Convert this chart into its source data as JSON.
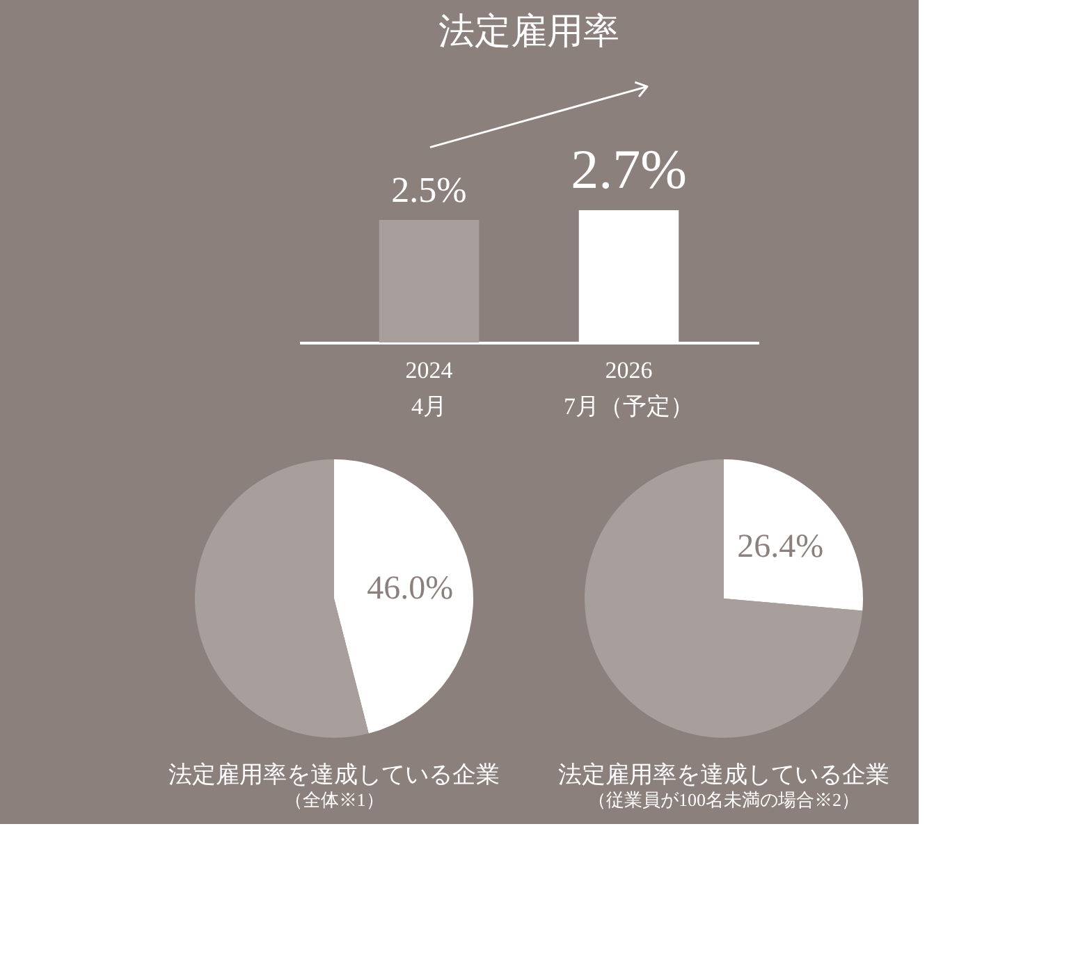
{
  "chart_data": [
    {
      "type": "bar",
      "title": "法定雇用率",
      "categories": [
        "2024\n4月",
        "2026\n7月（予定）"
      ],
      "values": [
        2.5,
        2.7
      ],
      "colors": [
        "#a89f9d",
        "#ffffff"
      ],
      "value_labels": [
        "2.5%",
        "2.7%"
      ]
    },
    {
      "type": "pie",
      "title": "法定雇用率を達成している企業",
      "subtitle": "（全体※1）",
      "categories": [
        null,
        null
      ],
      "values": [
        46.0,
        54.0
      ],
      "colors": [
        "#ffffff",
        "#a89f9d"
      ],
      "value_labels": [
        "46.0%",
        null
      ]
    },
    {
      "type": "pie",
      "title": "法定雇用率を達成している企業",
      "subtitle": "（従業員が100名未満の場合※2）",
      "categories": [
        null,
        null
      ],
      "values": [
        26.4,
        73.6
      ],
      "colors": [
        "#ffffff",
        "#a89f9d"
      ],
      "value_labels": [
        "26.4%",
        null
      ]
    }
  ]
}
